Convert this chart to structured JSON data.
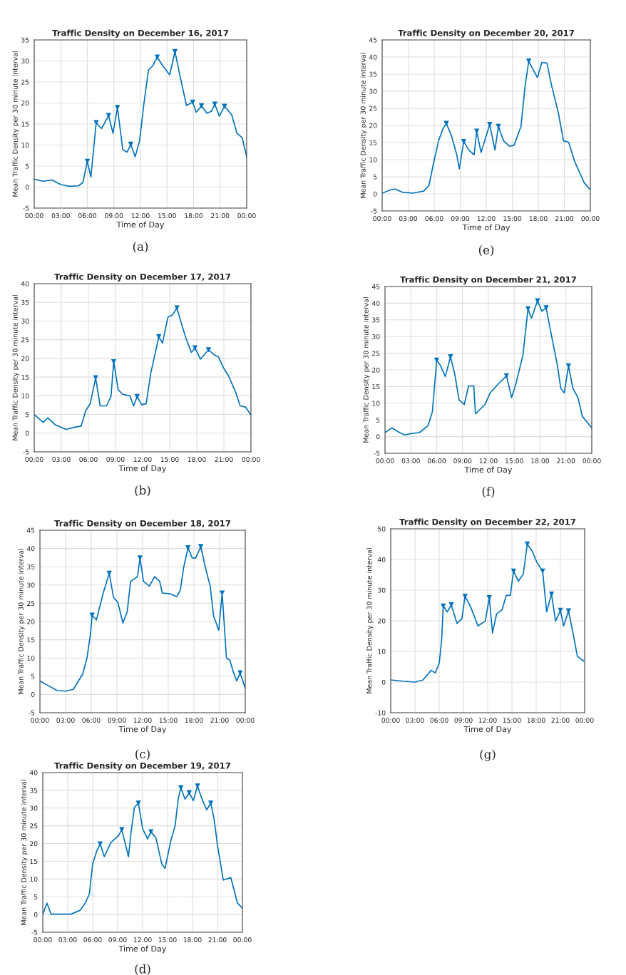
{
  "chart_data": [
    {
      "type": "line",
      "title": "Traffic Density on December 16, 2017",
      "xlabel": "Time of Day",
      "ylabel": "Mean Traffic Density per 30 minute interval",
      "annotations": [
        "(a)"
      ],
      "grid": true,
      "xlim": [
        0,
        24
      ],
      "xticks": [
        {
          "value": 0,
          "label": "00:00"
        },
        {
          "value": 3,
          "label": "03:00"
        },
        {
          "value": 6,
          "label": "06:00"
        },
        {
          "value": 9,
          "label": "09:00"
        },
        {
          "value": 12,
          "label": "12:00"
        },
        {
          "value": 15,
          "label": "15:00"
        },
        {
          "value": 18,
          "label": "18:00"
        },
        {
          "value": 21,
          "label": "21:00"
        },
        {
          "value": 24,
          "label": "00:00"
        }
      ],
      "ylim": [
        -5,
        35
      ],
      "yticks": [
        -5,
        0,
        5,
        10,
        15,
        20,
        25,
        30,
        35
      ],
      "series": [
        {
          "type": "line",
          "color": "#0072bd",
          "marker": "none",
          "x": [
            0,
            1,
            2,
            3,
            4,
            5,
            5.5,
            6,
            6.4,
            7,
            7.6,
            8.4,
            8.9,
            9.4,
            10,
            10.5,
            10.9,
            11.4,
            11.9,
            12.4,
            12.9,
            13.4,
            13.9,
            14.5,
            15.3,
            15.9,
            16.5,
            17.2,
            17.9,
            18.3,
            18.9,
            19.5,
            20,
            20.4,
            20.9,
            21.5,
            22.3,
            22.9,
            23.5,
            24
          ],
          "values": [
            1.9,
            1.4,
            1.7,
            0.6,
            0.2,
            0.3,
            1.1,
            6.1,
            2.4,
            15.3,
            13.9,
            17,
            12.8,
            18.9,
            8.9,
            8.3,
            10.2,
            7.2,
            11,
            20,
            27.8,
            28.9,
            30.9,
            28.9,
            26.7,
            32.2,
            26.1,
            19.4,
            20.2,
            17.8,
            19.3,
            17.6,
            18,
            19.7,
            16.9,
            19.2,
            17.2,
            12.8,
            11.7,
            7.2
          ]
        },
        {
          "type": "scatter",
          "color": "#0072bd",
          "marker": "triangle",
          "x": [
            6,
            7,
            8.4,
            9.4,
            10.9,
            13.9,
            15.9,
            17.9,
            18.9,
            20.4,
            21.5
          ],
          "values": [
            6.1,
            15.3,
            17,
            18.9,
            10.2,
            30.9,
            32.2,
            20.2,
            19.3,
            19.7,
            19.2
          ]
        }
      ]
    },
    {
      "type": "line",
      "title": "Traffic Density on December 17, 2017",
      "xlabel": "Time of Day",
      "ylabel": "Mean Traffic Density per 30 minute interval",
      "annotations": [
        "(b)"
      ],
      "grid": true,
      "xlim": [
        0,
        24
      ],
      "xticks": [
        {
          "value": 0,
          "label": "00:00"
        },
        {
          "value": 3,
          "label": "03:00"
        },
        {
          "value": 6,
          "label": "06:00"
        },
        {
          "value": 9,
          "label": "09:00"
        },
        {
          "value": 12,
          "label": "12:00"
        },
        {
          "value": 15,
          "label": "15:00"
        },
        {
          "value": 18,
          "label": "18:00"
        },
        {
          "value": 21,
          "label": "21:00"
        },
        {
          "value": 24,
          "label": "00:00"
        }
      ],
      "ylim": [
        -5,
        40
      ],
      "yticks": [
        -5,
        0,
        5,
        10,
        15,
        20,
        25,
        30,
        35,
        40
      ],
      "series": [
        {
          "type": "line",
          "color": "#0072bd",
          "marker": "none",
          "x": [
            0,
            1,
            1.5,
            2.3,
            3.5,
            4.5,
            5.2,
            5.7,
            6.2,
            6.8,
            7.3,
            8,
            8.5,
            8.8,
            9.3,
            9.8,
            10.6,
            11,
            11.4,
            11.9,
            12.4,
            12.9,
            13.8,
            14.2,
            14.8,
            15.3,
            15.8,
            16.4,
            16.8,
            17.4,
            17.8,
            18.4,
            19.3,
            19.9,
            20.4,
            21,
            21.5,
            22.3,
            22.8,
            23.4,
            24
          ],
          "values": [
            5,
            2.9,
            4.1,
            2.3,
            1,
            1.6,
            1.9,
            6,
            7.9,
            14.8,
            7.3,
            7.3,
            9.8,
            19.1,
            11.6,
            10.4,
            10,
            7.3,
            9.8,
            7.6,
            7.9,
            16,
            25.8,
            24.1,
            31,
            31.6,
            33.5,
            28.5,
            25.4,
            21.6,
            22.8,
            19.8,
            22.3,
            21,
            20.4,
            17.3,
            15.4,
            11,
            7.3,
            7,
            4.8
          ]
        },
        {
          "type": "scatter",
          "color": "#0072bd",
          "marker": "triangle",
          "x": [
            6.8,
            8.8,
            11.4,
            13.8,
            15.8,
            17.8,
            19.3
          ],
          "values": [
            14.8,
            19.1,
            9.8,
            25.8,
            33.5,
            22.8,
            22.3
          ]
        }
      ]
    },
    {
      "type": "line",
      "title": "Traffic Density on December 18, 2017",
      "xlabel": "Time of Day",
      "ylabel": "Mean Traffic Density per 30 minute interval",
      "annotations": [
        "(c)"
      ],
      "grid": true,
      "xlim": [
        0,
        24
      ],
      "xticks": [
        {
          "value": 0,
          "label": "00:00"
        },
        {
          "value": 3,
          "label": "03:00"
        },
        {
          "value": 6,
          "label": "06:00"
        },
        {
          "value": 9,
          "label": "09:00"
        },
        {
          "value": 12,
          "label": "12:00"
        },
        {
          "value": 15,
          "label": "15:00"
        },
        {
          "value": 18,
          "label": "18:00"
        },
        {
          "value": 21,
          "label": "21:00"
        },
        {
          "value": 24,
          "label": "00:00"
        }
      ],
      "ylim": [
        -5,
        45
      ],
      "yticks": [
        -5,
        0,
        5,
        10,
        15,
        20,
        25,
        30,
        35,
        40,
        45
      ],
      "series": [
        {
          "type": "line",
          "color": "#0072bd",
          "marker": "none",
          "x": [
            0,
            1,
            2,
            3,
            3.9,
            4.5,
            5,
            5.5,
            5.9,
            6.1,
            6.6,
            7.4,
            8.1,
            8.6,
            9.1,
            9.7,
            10.2,
            10.6,
            11,
            11.4,
            11.7,
            12.1,
            12.8,
            13.4,
            14,
            14.3,
            15.2,
            16,
            16.4,
            16.8,
            17.3,
            17.8,
            18.2,
            18.8,
            19.4,
            19.9,
            20.3,
            20.9,
            21.3,
            21.8,
            22.2,
            22.6,
            23,
            23.4,
            24
          ],
          "values": [
            3.7,
            2.4,
            1.1,
            0.9,
            1.4,
            3.7,
            5.6,
            10,
            16.4,
            21.7,
            20.4,
            27.8,
            33.2,
            26.6,
            25.3,
            19.6,
            22.7,
            31,
            31.6,
            32.3,
            37.4,
            31,
            29.7,
            32.3,
            31,
            27.8,
            27.6,
            26.8,
            28.5,
            34.8,
            40.2,
            37.4,
            37.4,
            40.5,
            34.2,
            29.7,
            21.5,
            17.6,
            27.8,
            10,
            9.4,
            6.2,
            3.7,
            5.9,
            1.7
          ]
        },
        {
          "type": "scatter",
          "color": "#0072bd",
          "marker": "triangle",
          "x": [
            6.1,
            8.1,
            11.7,
            17.3,
            18.8,
            21.3,
            23.4
          ],
          "values": [
            21.7,
            33.2,
            37.4,
            40.2,
            40.5,
            27.8,
            5.9
          ]
        }
      ]
    },
    {
      "type": "line",
      "title": "Traffic Density on December 19, 2017",
      "xlabel": "Time of Day",
      "ylabel": "Mean Traffic Density per 30 minute interval",
      "annotations": [
        "(d)"
      ],
      "grid": true,
      "xlim": [
        0,
        24
      ],
      "xticks": [
        {
          "value": 0,
          "label": "00:00"
        },
        {
          "value": 3,
          "label": "03:00"
        },
        {
          "value": 6,
          "label": "06:00"
        },
        {
          "value": 9,
          "label": "09:00"
        },
        {
          "value": 12,
          "label": "12:00"
        },
        {
          "value": 15,
          "label": "15:00"
        },
        {
          "value": 18,
          "label": "18:00"
        },
        {
          "value": 21,
          "label": "21:00"
        },
        {
          "value": 24,
          "label": "00:00"
        }
      ],
      "ylim": [
        -5,
        40
      ],
      "yticks": [
        -5,
        0,
        5,
        10,
        15,
        20,
        25,
        30,
        35,
        40
      ],
      "series": [
        {
          "type": "line",
          "color": "#0072bd",
          "marker": "none",
          "x": [
            0,
            0.5,
            1,
            2,
            3.4,
            4.5,
            5.1,
            5.6,
            6,
            6.5,
            6.9,
            7.4,
            8.2,
            9.1,
            9.5,
            10.3,
            10.6,
            11,
            11.5,
            12,
            12.6,
            13,
            13.6,
            14.3,
            14.7,
            15.4,
            15.9,
            16.3,
            16.6,
            17.1,
            17.6,
            18.1,
            18.6,
            19.1,
            19.7,
            20.2,
            20.6,
            21,
            21.7,
            22.6,
            22.9,
            23.4,
            24
          ],
          "values": [
            0.1,
            3.2,
            0.1,
            0.1,
            0.1,
            1.2,
            3.2,
            5.8,
            14.3,
            18,
            19.9,
            16.3,
            20.3,
            22.2,
            23.9,
            16.3,
            22.9,
            30.1,
            31.4,
            24.2,
            21.3,
            23.3,
            21.6,
            14.3,
            13,
            20.9,
            24.9,
            32.8,
            35.7,
            32.5,
            34.3,
            32.1,
            36.2,
            32.8,
            29.5,
            31.4,
            26.8,
            19.6,
            9.7,
            10.4,
            7.8,
            3.2,
            1.8
          ]
        },
        {
          "type": "scatter",
          "color": "#0072bd",
          "marker": "triangle",
          "x": [
            6.9,
            9.5,
            11.5,
            13,
            16.6,
            17.6,
            18.6,
            20.2
          ],
          "values": [
            19.9,
            23.9,
            31.4,
            23.3,
            35.7,
            34.3,
            36.2,
            31.4
          ]
        }
      ]
    },
    {
      "type": "line",
      "title": "Traffic Density on December 20, 2017",
      "xlabel": "Time of Day",
      "ylabel": "Mean Traffic Density per 30 minute interval",
      "annotations": [
        "(e)"
      ],
      "grid": true,
      "xlim": [
        0,
        24
      ],
      "xticks": [
        {
          "value": 0,
          "label": "00:00"
        },
        {
          "value": 3,
          "label": "03:00"
        },
        {
          "value": 6,
          "label": "06:00"
        },
        {
          "value": 9,
          "label": "09:00"
        },
        {
          "value": 12,
          "label": "12:00"
        },
        {
          "value": 15,
          "label": "15:00"
        },
        {
          "value": 18,
          "label": "18:00"
        },
        {
          "value": 21,
          "label": "21:00"
        },
        {
          "value": 24,
          "label": "00:00"
        }
      ],
      "ylim": [
        -5,
        45
      ],
      "yticks": [
        -5,
        0,
        5,
        10,
        15,
        20,
        25,
        30,
        35,
        40,
        45
      ],
      "series": [
        {
          "type": "line",
          "color": "#0072bd",
          "marker": "none",
          "x": [
            0,
            1,
            1.5,
            2.3,
            3.5,
            4.8,
            5.4,
            5.9,
            6.5,
            7,
            7.4,
            8,
            8.6,
            8.9,
            9.4,
            10,
            10.6,
            10.9,
            11.4,
            12.4,
            13,
            13.4,
            14,
            14.7,
            15.2,
            16,
            16.5,
            16.9,
            17.3,
            17.9,
            18.4,
            19,
            19.5,
            20.3,
            20.9,
            21.5,
            22.2,
            23.3,
            24
          ],
          "values": [
            0.2,
            1.2,
            1.4,
            0.5,
            0.2,
            0.8,
            2.5,
            8.7,
            15.5,
            19,
            20.6,
            16.9,
            11.4,
            7.3,
            15.3,
            12.8,
            11.4,
            18.3,
            12.1,
            20.3,
            12.8,
            19.7,
            15.5,
            13.9,
            14.2,
            19.7,
            32,
            38.8,
            36.8,
            34,
            38.4,
            38.2,
            32,
            23.8,
            15.5,
            15.1,
            9.4,
            3.2,
            1.2
          ]
        },
        {
          "type": "scatter",
          "color": "#0072bd",
          "marker": "triangle",
          "x": [
            7.4,
            9.4,
            10.9,
            12.4,
            13.4,
            16.9
          ],
          "values": [
            20.6,
            15.3,
            18.3,
            20.3,
            19.7,
            38.8
          ]
        }
      ]
    },
    {
      "type": "line",
      "title": "Traffic Density on December 21, 2017",
      "xlabel": "Time of Day",
      "ylabel": "Mean Traffic Density per 30 minute interval",
      "annotations": [
        "(f)"
      ],
      "grid": true,
      "xlim": [
        0,
        24
      ],
      "xticks": [
        {
          "value": 0,
          "label": "00:00"
        },
        {
          "value": 3,
          "label": "03:00"
        },
        {
          "value": 6,
          "label": "06:00"
        },
        {
          "value": 9,
          "label": "09:00"
        },
        {
          "value": 12,
          "label": "12:00"
        },
        {
          "value": 15,
          "label": "15:00"
        },
        {
          "value": 18,
          "label": "18:00"
        },
        {
          "value": 21,
          "label": "21:00"
        },
        {
          "value": 24,
          "label": "00:00"
        }
      ],
      "ylim": [
        -5,
        45
      ],
      "yticks": [
        -5,
        0,
        5,
        10,
        15,
        20,
        25,
        30,
        35,
        40,
        45
      ],
      "series": [
        {
          "type": "line",
          "color": "#0072bd",
          "marker": "none",
          "x": [
            0,
            0.8,
            1.7,
            2.3,
            3,
            4,
            5,
            5.5,
            6,
            6.4,
            7,
            7.6,
            8.1,
            8.6,
            9.2,
            9.7,
            10.3,
            10.5,
            11.6,
            12.2,
            13,
            14.1,
            14.7,
            15.2,
            16,
            16.6,
            17,
            17.7,
            18.2,
            18.7,
            19.3,
            20,
            20.4,
            20.8,
            21.3,
            21.8,
            22.4,
            22.9,
            24
          ],
          "values": [
            1.2,
            2.6,
            1.2,
            0.5,
            0.9,
            1.2,
            3.3,
            7.5,
            22.9,
            21.5,
            18,
            23.9,
            18.7,
            11,
            9.6,
            15.2,
            15.2,
            6.8,
            9.6,
            13.1,
            15.4,
            18.2,
            11.7,
            15.9,
            24.3,
            38.3,
            35.5,
            40.7,
            37.6,
            38.6,
            30.6,
            21.5,
            14.5,
            13.1,
            21.2,
            14.5,
            11.7,
            6.1,
            2.6
          ]
        },
        {
          "type": "scatter",
          "color": "#0072bd",
          "marker": "triangle",
          "x": [
            6,
            7.6,
            14.1,
            16.6,
            17.7,
            18.7,
            21.3
          ],
          "values": [
            22.9,
            23.9,
            18.2,
            38.3,
            40.7,
            38.6,
            21.2
          ]
        }
      ]
    },
    {
      "type": "line",
      "title": "Traffic Density on December 22, 2017",
      "xlabel": "Time of Day",
      "ylabel": "Mean Traffic Density per 30 minute interval",
      "annotations": [
        "(g)"
      ],
      "grid": true,
      "xlim": [
        0,
        24
      ],
      "xticks": [
        {
          "value": 0,
          "label": "00:00"
        },
        {
          "value": 3,
          "label": "03:00"
        },
        {
          "value": 6,
          "label": "06:00"
        },
        {
          "value": 9,
          "label": "09:00"
        },
        {
          "value": 12,
          "label": "12:00"
        },
        {
          "value": 15,
          "label": "15:00"
        },
        {
          "value": 18,
          "label": "18:00"
        },
        {
          "value": 21,
          "label": "21:00"
        },
        {
          "value": 24,
          "label": "00:00"
        }
      ],
      "ylim": [
        -10,
        50
      ],
      "yticks": [
        -10,
        0,
        10,
        20,
        30,
        40,
        50
      ],
      "series": [
        {
          "type": "line",
          "color": "#0072bd",
          "marker": "none",
          "x": [
            0,
            1.5,
            3,
            4,
            5,
            5.5,
            6,
            6.3,
            6.5,
            7,
            7.5,
            8.2,
            8.8,
            9.2,
            9.9,
            10.8,
            11.7,
            12.2,
            12.6,
            13.1,
            13.8,
            14.3,
            14.8,
            15.2,
            15.8,
            16.4,
            16.9,
            17.5,
            18.1,
            18.8,
            19.3,
            19.9,
            20.4,
            21,
            21.4,
            22,
            22.5,
            23.1,
            23.9
          ],
          "values": [
            0.7,
            0.3,
            0,
            0.7,
            3.8,
            3,
            6.1,
            13.7,
            24.8,
            22.9,
            25.2,
            19.1,
            20.6,
            28,
            24.5,
            18.3,
            19.9,
            27.5,
            16,
            22.2,
            23.7,
            28.3,
            28.3,
            36.2,
            32.9,
            35.2,
            45,
            42.8,
            39,
            36.2,
            22.9,
            28.7,
            19.9,
            23.4,
            18.3,
            23.2,
            16.8,
            8.4,
            6.8
          ]
        },
        {
          "type": "scatter",
          "color": "#0072bd",
          "marker": "triangle",
          "x": [
            6.5,
            7.5,
            9.2,
            12.2,
            15.2,
            16.9,
            18.8,
            19.9,
            21,
            22
          ],
          "values": [
            24.8,
            25.2,
            28,
            27.5,
            36.2,
            45,
            36.2,
            28.7,
            23.4,
            23.2
          ]
        }
      ]
    }
  ]
}
